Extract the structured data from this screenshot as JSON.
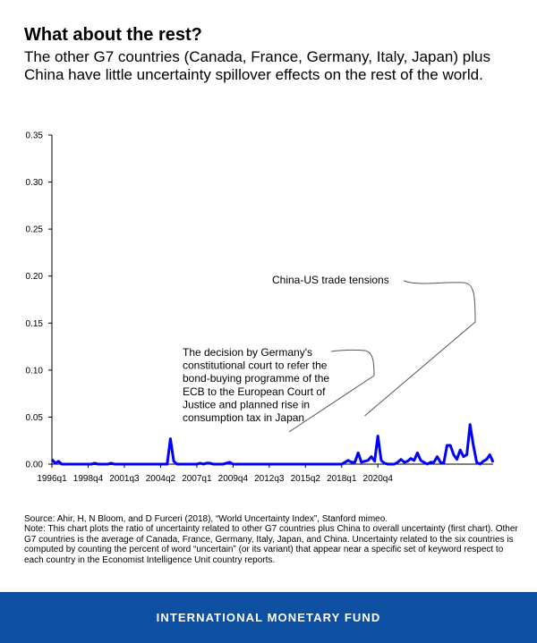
{
  "header": {
    "title": "What about the rest?",
    "subtitle": "The other G7 countries (Canada, France, Germany, Italy, Japan) plus China have little uncertainty spillover effects on the rest of the world."
  },
  "footnote": {
    "source": "Source: Ahir, H, N Bloom, and D Furceri (2018), “World Uncertainty Index”, Stanford mimeo.",
    "note": "Note: This chart plots the ratio of uncertainty related to other G7 countries plus China to overall uncertainty (first chart). Other G7 countries is the average of Canada, France, Germany, Italy, Japan, and China. Uncertainty related to the six countries is computed by counting the percent of word “uncertain” (or its variant) that appear near a specific set of keyword respect to each country in the Economist Intelligence Unit country reports."
  },
  "footer": {
    "org": "INTERNATIONAL MONETARY FUND"
  },
  "colors": {
    "line": "#0000ff",
    "footer_bg": "#0d4fa0",
    "axis": "#000000"
  },
  "chart_data": {
    "type": "line",
    "title": "",
    "xlabel": "",
    "ylabel": "",
    "ylim": [
      0,
      0.35
    ],
    "yticks": [
      "0.00",
      "0.05",
      "0.10",
      "0.15",
      "0.20",
      "0.25",
      "0.30",
      "0.35"
    ],
    "xticks": [
      "1996q1",
      "1998q4",
      "2001q3",
      "2004q2",
      "2007q1",
      "2009q4",
      "2012q3",
      "2015q2",
      "2018q1",
      "2020q4"
    ],
    "grid": false,
    "legend": "none",
    "series": [
      {
        "values": [
          0.005,
          0.001,
          0.003,
          0.0,
          0.0,
          0.0,
          0.0,
          0.0,
          0.0,
          0.0,
          0.0,
          0.0,
          0.0,
          0.001,
          0.0,
          0.0,
          0.0,
          0.0,
          0.001,
          0.0,
          0.0,
          0.0,
          0.0,
          0.0,
          0.0,
          0.0,
          0.0,
          0.0,
          0.0,
          0.0,
          0.0,
          0.0,
          0.0,
          0.0,
          0.0,
          0.0,
          0.027,
          0.003,
          0.0,
          0.0,
          0.0,
          0.0,
          0.0,
          0.0,
          0.0,
          0.001,
          0.0,
          0.001,
          0.001,
          0.0,
          0.0,
          0.0,
          0.0,
          0.001,
          0.002,
          0.0,
          0.0,
          0.0,
          0.0,
          0.0,
          0.0,
          0.0,
          0.0,
          0.0,
          0.0,
          0.0,
          0.0,
          0.0,
          0.0,
          0.0,
          0.0,
          0.0,
          0.0,
          0.0,
          0.0,
          0.0,
          0.0,
          0.0,
          0.0,
          0.0,
          0.0,
          0.0,
          0.0,
          0.0,
          0.0,
          0.0,
          0.0,
          0.0,
          0.0,
          0.002,
          0.004,
          0.002,
          0.002,
          0.012,
          0.002,
          0.003,
          0.004,
          0.008,
          0.003,
          0.03,
          0.004,
          0.001,
          0.0,
          0.0,
          0.0,
          0.002,
          0.005,
          0.002,
          0.003,
          0.006,
          0.004,
          0.012,
          0.004,
          0.002,
          0.0,
          0.002,
          0.002,
          0.008,
          0.002,
          0.001,
          0.02,
          0.02,
          0.01,
          0.005,
          0.015,
          0.008,
          0.01,
          0.042,
          0.02,
          0.002,
          0.0,
          0.003,
          0.005,
          0.01,
          0.002
        ]
      }
    ],
    "annotations": [
      {
        "lines": [
          "China-US trade tensions"
        ],
        "target_x": "2019q4"
      },
      {
        "lines": [
          "The decision by Germany's",
          "constitutional court to refer the",
          "bond-buying programme of the",
          "ECB to the European Court of",
          "Justice and planned rise in",
          "consumption tax in Japan"
        ],
        "target_x": "2014q1"
      }
    ]
  }
}
